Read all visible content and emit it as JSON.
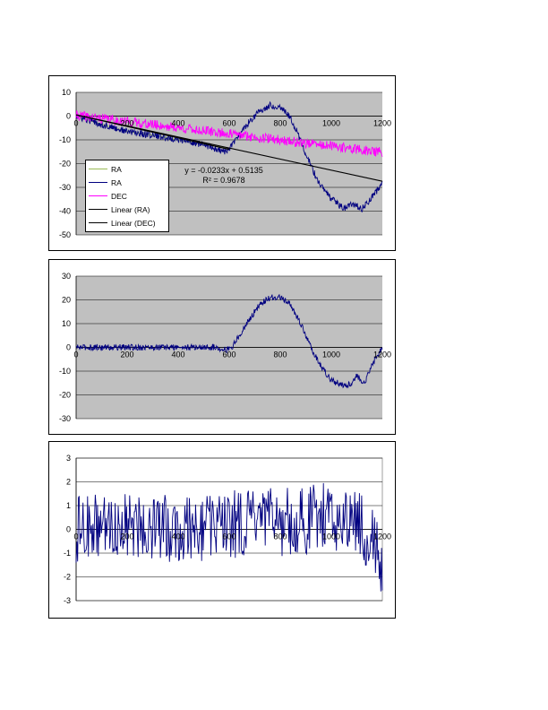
{
  "chart_data": [
    {
      "type": "line",
      "title": "",
      "xlabel": "",
      "ylabel": "",
      "xlim": [
        0,
        1200
      ],
      "ylim": [
        -50,
        10
      ],
      "x_ticks": [
        "0",
        "200",
        "400",
        "600",
        "800",
        "1000",
        "1200"
      ],
      "y_ticks": [
        "10",
        "0",
        "-10",
        "-20",
        "-30",
        "-40",
        "-50"
      ],
      "plot_background": "#c0c0c0",
      "grid": true,
      "legend_position": "lower-left",
      "series": [
        {
          "name": "RA",
          "color": "#99bb55",
          "style": "line",
          "x": [
            0,
            100,
            200,
            300,
            400,
            500,
            600
          ],
          "y": [
            0,
            -3.5,
            -6.5,
            -8,
            -10,
            -12,
            -13.5
          ]
        },
        {
          "name": "RA",
          "color": "#000080",
          "style": "noisy-line",
          "x": [
            0,
            100,
            200,
            300,
            400,
            500,
            550,
            580,
            600,
            640,
            680,
            720,
            760,
            800,
            830,
            860,
            900,
            950,
            1000,
            1050,
            1080,
            1120,
            1160,
            1190,
            1200
          ],
          "y": [
            0,
            -3.5,
            -6.5,
            -8,
            -10,
            -12,
            -14,
            -15,
            -14,
            -8,
            -2,
            2,
            4.5,
            4,
            1,
            -5,
            -16,
            -28,
            -35,
            -39,
            -37,
            -39,
            -34,
            -30,
            -28
          ]
        },
        {
          "name": "DEC",
          "color": "#ff00ff",
          "style": "noisy-line",
          "x": [
            0,
            1200
          ],
          "y": [
            0.3,
            -15.3
          ]
        },
        {
          "name": "Linear (RA)",
          "color": "#000000",
          "style": "trend",
          "x": [
            0,
            600
          ],
          "y": [
            0.5,
            -14
          ]
        },
        {
          "name": "Linear (DEC)",
          "color": "#000000",
          "style": "trend",
          "x": [
            0,
            1200
          ],
          "y": [
            0.5135,
            -27.4465
          ]
        }
      ],
      "annotations": [
        "y = -0.0233x + 0.5135",
        "R² = 0.9678"
      ]
    },
    {
      "type": "line",
      "title": "",
      "xlabel": "",
      "ylabel": "",
      "xlim": [
        0,
        1200
      ],
      "ylim": [
        -30,
        30
      ],
      "x_ticks": [
        "0",
        "200",
        "400",
        "600",
        "800",
        "1000",
        "1200"
      ],
      "y_ticks": [
        "30",
        "20",
        "10",
        "0",
        "-10",
        "-20",
        "-30"
      ],
      "plot_background": "#c0c0c0",
      "grid": true,
      "series": [
        {
          "color": "#000080",
          "style": "noisy-line",
          "x": [
            0,
            200,
            400,
            550,
            590,
            610,
            640,
            680,
            720,
            760,
            800,
            840,
            880,
            920,
            960,
            1000,
            1050,
            1080,
            1100,
            1130,
            1150,
            1180,
            1200
          ],
          "y": [
            0,
            0,
            0,
            0,
            -1,
            0,
            5,
            12,
            18,
            21,
            21,
            18,
            10,
            0,
            -8,
            -14,
            -16,
            -15,
            -12,
            -15,
            -10,
            -3,
            0
          ]
        }
      ]
    },
    {
      "type": "line",
      "title": "",
      "xlabel": "",
      "ylabel": "",
      "xlim": [
        0,
        1200
      ],
      "ylim": [
        -3,
        3
      ],
      "x_ticks": [
        "0",
        "200",
        "400",
        "600",
        "800",
        "1000",
        "1200"
      ],
      "y_ticks": [
        "3",
        "2",
        "1",
        "0",
        "-1",
        "-2",
        "-3"
      ],
      "plot_background": "#ffffff",
      "grid": true,
      "series": [
        {
          "color": "#000080",
          "style": "noisy-line",
          "x": [
            0,
            100,
            200,
            300,
            400,
            500,
            600,
            700,
            800,
            900,
            1000,
            1100,
            1150,
            1200
          ],
          "y": [
            0,
            0.1,
            0.2,
            0.1,
            0,
            0.1,
            0.2,
            0.3,
            0.3,
            0.4,
            0.6,
            0.3,
            -0.3,
            -1.5
          ]
        }
      ]
    }
  ]
}
